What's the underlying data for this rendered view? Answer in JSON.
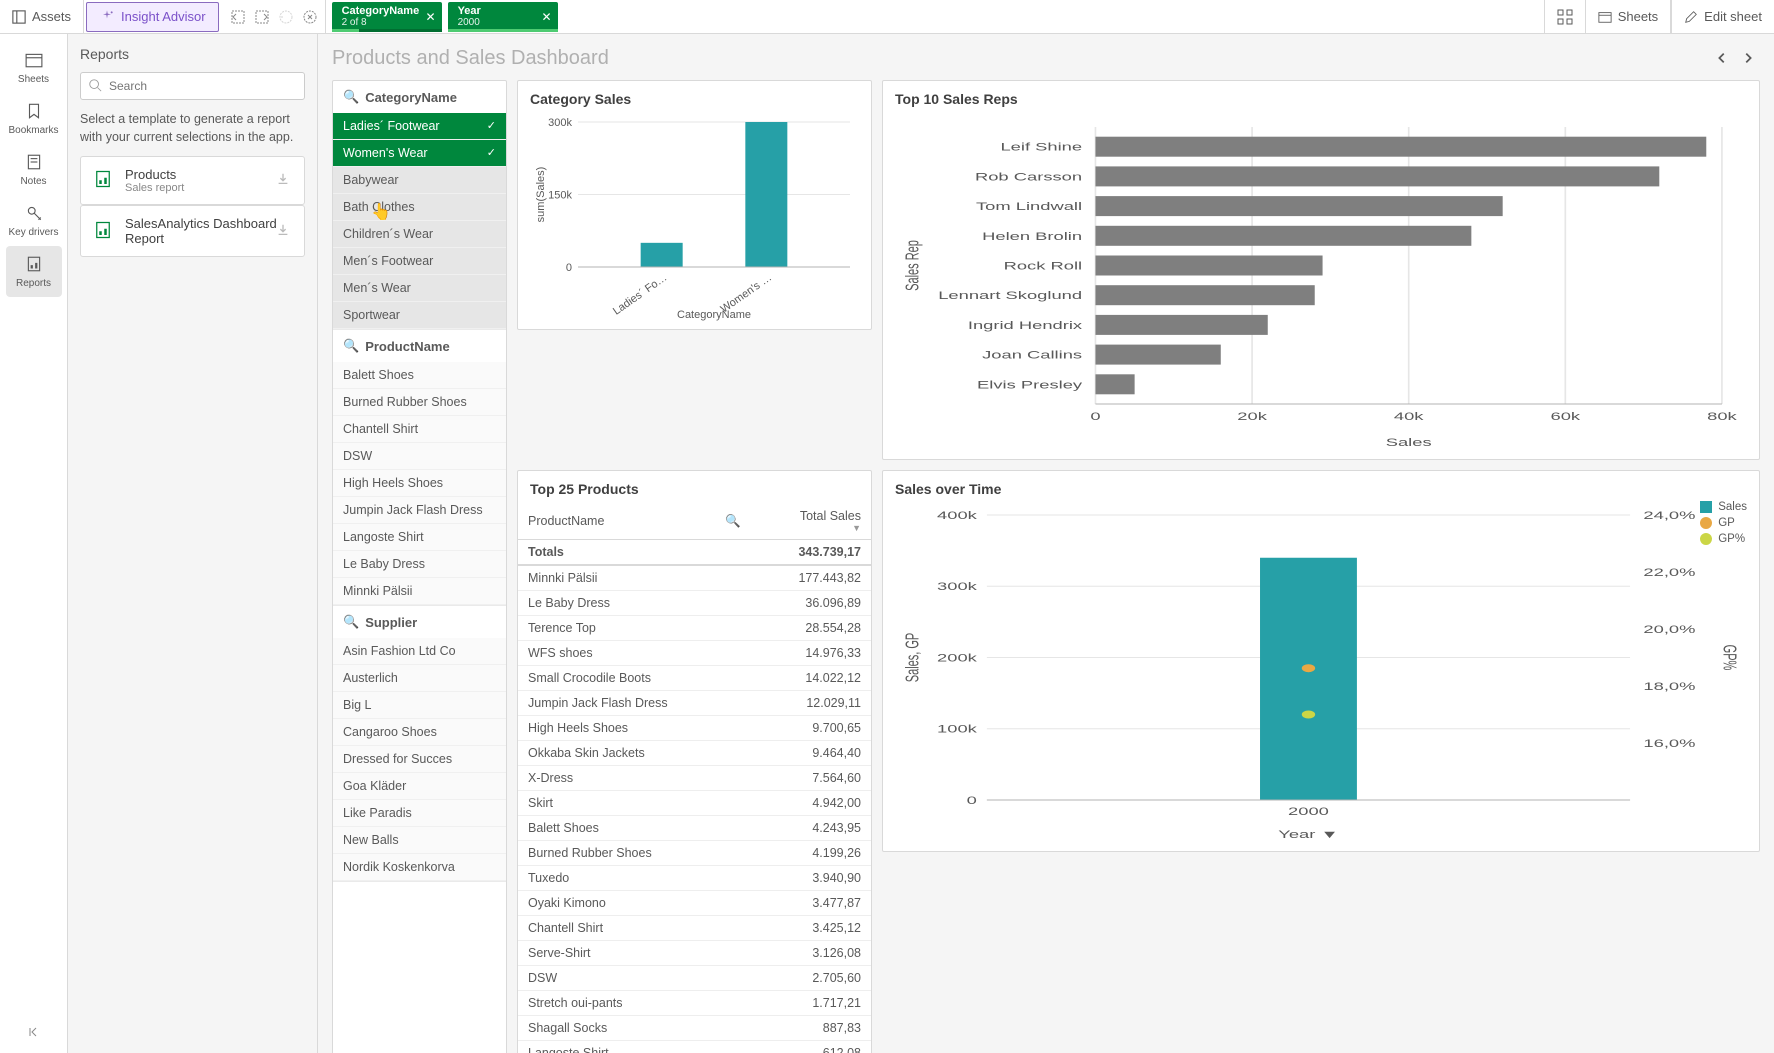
{
  "toolbar": {
    "assets": "Assets",
    "insight": "Insight Advisor",
    "sheets": "Sheets",
    "edit_sheet": "Edit sheet",
    "chips": [
      {
        "label": "CategoryName",
        "sub": "2 of 8",
        "fill": 25
      },
      {
        "label": "Year",
        "sub": "2000",
        "fill": 100
      }
    ]
  },
  "rail": {
    "items": [
      {
        "id": "sheets",
        "label": "Sheets"
      },
      {
        "id": "bookmarks",
        "label": "Bookmarks"
      },
      {
        "id": "notes",
        "label": "Notes"
      },
      {
        "id": "keydrivers",
        "label": "Key drivers"
      },
      {
        "id": "reports",
        "label": "Reports"
      }
    ]
  },
  "reports": {
    "title": "Reports",
    "search_placeholder": "Search",
    "hint": "Select a template to generate a report with your current selections in the app.",
    "cards": [
      {
        "title": "Products",
        "sub": "Sales report"
      },
      {
        "title": "SalesAnalytics Dashboard Report",
        "sub": ""
      }
    ]
  },
  "dashboard": {
    "title": "Products and Sales Dashboard"
  },
  "filters": {
    "category": {
      "title": "CategoryName",
      "items": [
        {
          "label": "Ladies´ Footwear",
          "selected": true
        },
        {
          "label": "Women's Wear",
          "selected": true
        },
        {
          "label": "Babywear",
          "selected": false
        },
        {
          "label": "Bath Clothes",
          "selected": false
        },
        {
          "label": "Children´s Wear",
          "selected": false
        },
        {
          "label": "Men´s Footwear",
          "selected": false
        },
        {
          "label": "Men´s Wear",
          "selected": false
        },
        {
          "label": "Sportwear",
          "selected": false
        }
      ]
    },
    "product": {
      "title": "ProductName",
      "items": [
        "Balett Shoes",
        "Burned Rubber Shoes",
        "Chantell Shirt",
        "DSW",
        "High Heels Shoes",
        "Jumpin Jack Flash Dress",
        "Langoste Shirt",
        "Le Baby Dress",
        "Minnki Pälsii"
      ]
    },
    "supplier": {
      "title": "Supplier",
      "items": [
        "Asin Fashion Ltd Co",
        "Austerlich",
        "Big L",
        "Cangaroo Shoes",
        "Dressed for Succes",
        "Goa Kläder",
        "Like Paradis",
        "New Balls",
        "Nordik Koskenkorva"
      ]
    }
  },
  "category_sales": {
    "title": "Category Sales",
    "type": "bar",
    "x_label": "CategoryName",
    "y_label": "sum(Sales)",
    "categories": [
      "Ladies´ Fo…",
      "Women's …"
    ],
    "values": [
      50000,
      300000
    ],
    "ylim": [
      0,
      300000
    ],
    "yticks": [
      0,
      150000,
      300000
    ],
    "ytick_labels": [
      "0",
      "150k",
      "300k"
    ],
    "bar_color": "#26a0a7",
    "background_color": "#ffffff"
  },
  "top_reps": {
    "title": "Top 10 Sales Reps",
    "type": "hbar",
    "x_label": "Sales",
    "y_label": "Sales Rep",
    "labels": [
      "Leif Shine",
      "Rob Carsson",
      "Tom Lindwall",
      "Helen Brolin",
      "Rock Roll",
      "Lennart Skoglund",
      "Ingrid Hendrix",
      "Joan Callins",
      "Elvis Presley"
    ],
    "values": [
      78000,
      72000,
      52000,
      48000,
      29000,
      28000,
      22000,
      16000,
      5000
    ],
    "xlim": [
      0,
      80000
    ],
    "xticks": [
      0,
      20000,
      40000,
      60000,
      80000
    ],
    "xtick_labels": [
      "0",
      "20k",
      "40k",
      "60k",
      "80k"
    ],
    "bar_color": "#7f7f7f"
  },
  "top_products": {
    "title": "Top 25 Products",
    "col1": "ProductName",
    "col2": "Total Sales",
    "totals_label": "Totals",
    "totals_value": "343.739,17",
    "rows": [
      [
        "Minnki Pälsii",
        "177.443,82"
      ],
      [
        "Le Baby Dress",
        "36.096,89"
      ],
      [
        "Terence Top",
        "28.554,28"
      ],
      [
        "WFS shoes",
        "14.976,33"
      ],
      [
        "Small Crocodile Boots",
        "14.022,12"
      ],
      [
        "Jumpin Jack Flash Dress",
        "12.029,11"
      ],
      [
        "High Heels Shoes",
        "9.700,65"
      ],
      [
        "Okkaba Skin Jackets",
        "9.464,40"
      ],
      [
        "X-Dress",
        "7.564,60"
      ],
      [
        "Skirt",
        "4.942,00"
      ],
      [
        "Balett Shoes",
        "4.243,95"
      ],
      [
        "Burned Rubber Shoes",
        "4.199,26"
      ],
      [
        "Tuxedo",
        "3.940,90"
      ],
      [
        "Oyaki Kimono",
        "3.477,87"
      ],
      [
        "Chantell Shirt",
        "3.425,12"
      ],
      [
        "Serve-Shirt",
        "3.126,08"
      ],
      [
        "DSW",
        "2.705,60"
      ],
      [
        "Stretch oui-pants",
        "1.717,21"
      ],
      [
        "Shagall Socks",
        "887,83"
      ],
      [
        "Langoste Shirt",
        "612,08"
      ]
    ]
  },
  "sales_time": {
    "title": "Sales over Time",
    "type": "combo",
    "x_label": "Year",
    "y_label_left": "Sales, GP",
    "y_label_right": "GP%",
    "categories": [
      "2000"
    ],
    "sales_values": [
      340000
    ],
    "gp_values": [
      185000
    ],
    "gppct_values": [
      17.0
    ],
    "ylim_left": [
      0,
      400000
    ],
    "yticks_left": [
      0,
      100000,
      200000,
      300000,
      400000
    ],
    "ytick_labels_left": [
      "0",
      "100k",
      "200k",
      "300k",
      "400k"
    ],
    "ylim_right": [
      14.0,
      24.0
    ],
    "yticks_right": [
      14.0,
      16.0,
      18.0,
      20.0,
      22.0,
      24.0
    ],
    "ytick_labels_right": [
      "",
      "16,0%",
      "18,0%",
      "20,0%",
      "22,0%",
      "24,0%"
    ],
    "legend": [
      {
        "label": "Sales",
        "color": "#26a0a7",
        "marker": "square"
      },
      {
        "label": "GP",
        "color": "#e9a844",
        "marker": "circle"
      },
      {
        "label": "GP%",
        "color": "#cbd646",
        "marker": "circle"
      }
    ],
    "colors": {
      "bar": "#26a0a7",
      "gp": "#e9a844",
      "gppct": "#cbd646"
    }
  }
}
